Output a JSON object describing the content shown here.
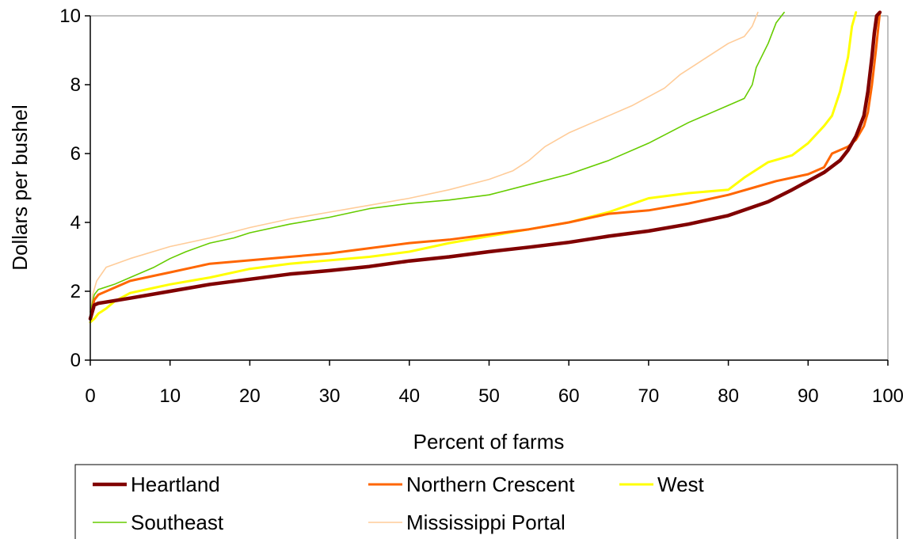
{
  "chart_data": {
    "type": "line",
    "title": "",
    "xlabel": "Percent of farms",
    "ylabel": "Dollars per bushel",
    "xlim": [
      0,
      100
    ],
    "ylim": [
      0,
      10
    ],
    "xticks": [
      0,
      10,
      20,
      30,
      40,
      50,
      60,
      70,
      80,
      90,
      100
    ],
    "yticks": [
      0,
      2,
      4,
      6,
      8,
      10
    ],
    "grid": false,
    "legend_position": "bottom",
    "series": [
      {
        "name": "Heartland",
        "color": "#800000",
        "x": [
          0,
          0.5,
          1,
          5,
          10,
          15,
          20,
          25,
          30,
          35,
          40,
          45,
          50,
          55,
          60,
          65,
          70,
          75,
          80,
          85,
          88,
          90,
          92,
          94,
          95,
          96,
          97,
          97.5,
          98,
          98.3,
          98.6,
          99
        ],
        "y": [
          1.2,
          1.6,
          1.65,
          1.8,
          2.0,
          2.2,
          2.35,
          2.5,
          2.6,
          2.72,
          2.88,
          3.0,
          3.15,
          3.28,
          3.42,
          3.6,
          3.75,
          3.95,
          4.2,
          4.6,
          4.95,
          5.2,
          5.45,
          5.8,
          6.1,
          6.5,
          7.1,
          7.8,
          8.8,
          9.5,
          10.0,
          10.1
        ]
      },
      {
        "name": "Northern Crescent",
        "color": "#FF6600",
        "x": [
          0,
          0.5,
          1,
          3,
          5,
          8,
          10,
          15,
          20,
          25,
          30,
          35,
          40,
          45,
          50,
          55,
          60,
          65,
          70,
          75,
          80,
          83,
          86,
          90,
          92,
          93,
          95,
          96,
          97,
          97.5,
          98,
          98.5,
          99
        ],
        "y": [
          1.2,
          1.75,
          1.9,
          2.1,
          2.3,
          2.45,
          2.55,
          2.8,
          2.9,
          3.0,
          3.1,
          3.25,
          3.4,
          3.5,
          3.65,
          3.8,
          4.0,
          4.25,
          4.35,
          4.55,
          4.8,
          5.0,
          5.2,
          5.4,
          5.6,
          6.0,
          6.2,
          6.4,
          6.8,
          7.2,
          8.0,
          9.0,
          10.1
        ]
      },
      {
        "name": "West",
        "color": "#FFFF00",
        "x": [
          0,
          0.5,
          1,
          2,
          3,
          5,
          8,
          10,
          15,
          20,
          25,
          30,
          35,
          40,
          45,
          50,
          55,
          60,
          65,
          70,
          75,
          80,
          82,
          85,
          88,
          90,
          92,
          93,
          94,
          95,
          95.5,
          96
        ],
        "y": [
          1.1,
          1.2,
          1.35,
          1.5,
          1.7,
          1.95,
          2.1,
          2.2,
          2.4,
          2.65,
          2.8,
          2.9,
          3.0,
          3.15,
          3.4,
          3.6,
          3.8,
          4.0,
          4.3,
          4.7,
          4.85,
          4.95,
          5.3,
          5.75,
          5.95,
          6.3,
          6.8,
          7.1,
          7.8,
          8.8,
          9.7,
          10.1
        ]
      },
      {
        "name": "Southeast",
        "color": "#66CC00",
        "x": [
          0,
          0.5,
          1,
          3,
          5,
          8,
          10,
          12,
          15,
          18,
          20,
          25,
          30,
          35,
          40,
          45,
          50,
          55,
          60,
          65,
          70,
          75,
          78,
          80,
          82,
          83,
          83.5,
          85,
          86,
          87
        ],
        "y": [
          1.4,
          1.9,
          2.05,
          2.2,
          2.4,
          2.7,
          2.95,
          3.15,
          3.4,
          3.55,
          3.7,
          3.95,
          4.15,
          4.4,
          4.55,
          4.65,
          4.8,
          5.1,
          5.4,
          5.8,
          6.3,
          6.9,
          7.2,
          7.4,
          7.6,
          8.0,
          8.5,
          9.2,
          9.8,
          10.1
        ]
      },
      {
        "name": "Mississippi Portal",
        "color": "#FFCC99",
        "x": [
          0,
          0.3,
          0.8,
          2,
          5,
          10,
          15,
          20,
          25,
          30,
          35,
          40,
          45,
          50,
          53,
          55,
          57,
          60,
          63,
          65,
          68,
          70,
          72,
          74,
          76,
          78,
          80,
          82,
          83,
          83.7
        ],
        "y": [
          1.3,
          1.9,
          2.3,
          2.7,
          2.95,
          3.3,
          3.55,
          3.85,
          4.1,
          4.3,
          4.5,
          4.7,
          4.95,
          5.25,
          5.5,
          5.8,
          6.2,
          6.6,
          6.9,
          7.1,
          7.4,
          7.65,
          7.9,
          8.3,
          8.6,
          8.9,
          9.2,
          9.4,
          9.7,
          10.1
        ]
      }
    ]
  }
}
